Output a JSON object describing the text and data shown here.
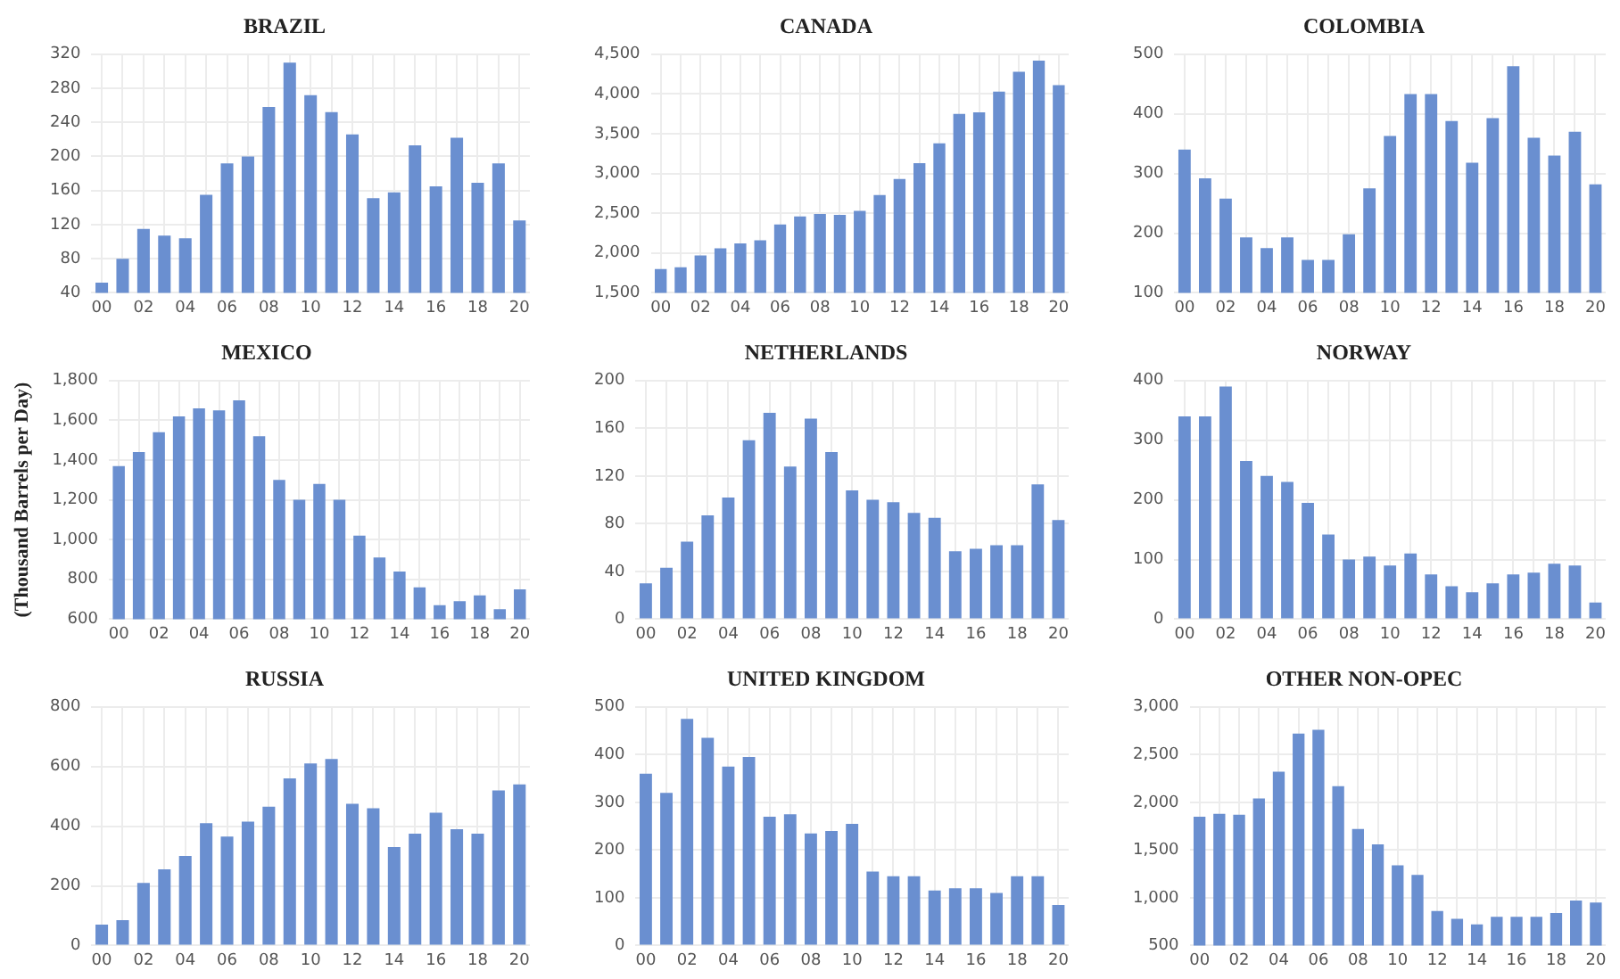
{
  "chart_data": [
    {
      "type": "bar",
      "title": "BRAZIL",
      "categories": [
        "00",
        null,
        "02",
        null,
        "04",
        null,
        "06",
        null,
        "08",
        null,
        "10",
        null,
        "12",
        null,
        "14",
        null,
        "16",
        null,
        "18",
        null,
        "20"
      ],
      "values": [
        52,
        80,
        115,
        107,
        104,
        155,
        192,
        200,
        258,
        310,
        272,
        252,
        226,
        151,
        158,
        213,
        165,
        222,
        169,
        192,
        125
      ],
      "color": "#6a8fd0",
      "ylim": [
        40,
        320
      ],
      "yticks": [
        40,
        80,
        120,
        160,
        200,
        240,
        280,
        320
      ],
      "grid": true
    },
    {
      "type": "bar",
      "title": "CANADA",
      "categories": [
        "00",
        null,
        "02",
        null,
        "04",
        null,
        "06",
        null,
        "08",
        null,
        "10",
        null,
        "12",
        null,
        "14",
        null,
        "16",
        null,
        "18",
        null,
        "20"
      ],
      "values": [
        1800,
        1820,
        1970,
        2060,
        2120,
        2160,
        2360,
        2460,
        2490,
        2480,
        2530,
        2730,
        2930,
        3130,
        3380,
        3750,
        3770,
        4030,
        4280,
        4420,
        4110
      ],
      "color": "#6a8fd0",
      "ylim": [
        1500,
        4500
      ],
      "yticks": [
        {
          "value": 1500,
          "label": "1,500"
        },
        {
          "value": 2000,
          "label": "2,000"
        },
        {
          "value": 2500,
          "label": "2,500"
        },
        {
          "value": 3000,
          "label": "3,000"
        },
        {
          "value": 3500,
          "label": "3,500"
        },
        {
          "value": 4000,
          "label": "4,000"
        },
        {
          "value": 4500,
          "label": "4,500"
        }
      ],
      "grid": true
    },
    {
      "type": "bar",
      "title": "COLOMBIA",
      "categories": [
        "00",
        null,
        "02",
        null,
        "04",
        null,
        "06",
        null,
        "08",
        null,
        "10",
        null,
        "12",
        null,
        "14",
        null,
        "16",
        null,
        "18",
        null,
        "20"
      ],
      "values": [
        340,
        292,
        258,
        193,
        175,
        193,
        155,
        155,
        198,
        275,
        363,
        433,
        433,
        388,
        318,
        393,
        480,
        360,
        330,
        370,
        282
      ],
      "color": "#6a8fd0",
      "ylim": [
        100,
        500
      ],
      "yticks": [
        100,
        200,
        300,
        400,
        500
      ],
      "grid": true
    },
    {
      "type": "bar",
      "title": "MEXICO",
      "ylabel": "(Thousand Barrels per Day)",
      "categories": [
        "00",
        null,
        "02",
        null,
        "04",
        null,
        "06",
        null,
        "08",
        null,
        "10",
        null,
        "12",
        null,
        "14",
        null,
        "16",
        null,
        "18",
        null,
        "20"
      ],
      "values": [
        1370,
        1440,
        1540,
        1620,
        1660,
        1650,
        1700,
        1520,
        1300,
        1200,
        1280,
        1200,
        1020,
        910,
        840,
        760,
        670,
        690,
        720,
        650,
        750
      ],
      "color": "#6a8fd0",
      "ylim": [
        600,
        1800
      ],
      "yticks": [
        600,
        800,
        {
          "value": 1000,
          "label": "1,000"
        },
        {
          "value": 1200,
          "label": "1,200"
        },
        {
          "value": 1400,
          "label": "1,400"
        },
        {
          "value": 1600,
          "label": "1,600"
        },
        {
          "value": 1800,
          "label": "1,800"
        }
      ],
      "grid": true
    },
    {
      "type": "bar",
      "title": "NETHERLANDS",
      "categories": [
        "00",
        null,
        "02",
        null,
        "04",
        null,
        "06",
        null,
        "08",
        null,
        "10",
        null,
        "12",
        null,
        "14",
        null,
        "16",
        null,
        "18",
        null,
        "20"
      ],
      "values": [
        30,
        43,
        65,
        87,
        102,
        150,
        173,
        128,
        168,
        140,
        108,
        100,
        98,
        89,
        85,
        57,
        59,
        62,
        62,
        113,
        83
      ],
      "color": "#6a8fd0",
      "ylim": [
        0,
        200
      ],
      "yticks": [
        0,
        40,
        80,
        120,
        160,
        200
      ],
      "grid": true
    },
    {
      "type": "bar",
      "title": "NORWAY",
      "categories": [
        "00",
        null,
        "02",
        null,
        "04",
        null,
        "06",
        null,
        "08",
        null,
        "10",
        null,
        "12",
        null,
        "14",
        null,
        "16",
        null,
        "18",
        null,
        "20"
      ],
      "values": [
        340,
        340,
        390,
        265,
        240,
        230,
        195,
        142,
        100,
        105,
        90,
        110,
        75,
        55,
        45,
        60,
        75,
        78,
        93,
        90,
        28
      ],
      "color": "#6a8fd0",
      "ylim": [
        0,
        400
      ],
      "yticks": [
        0,
        100,
        200,
        300,
        400
      ],
      "grid": true
    },
    {
      "type": "bar",
      "title": "RUSSIA",
      "categories": [
        "00",
        null,
        "02",
        null,
        "04",
        null,
        "06",
        null,
        "08",
        null,
        "10",
        null,
        "12",
        null,
        "14",
        null,
        "16",
        null,
        "18",
        null,
        "20"
      ],
      "values": [
        70,
        85,
        210,
        255,
        300,
        410,
        365,
        415,
        465,
        560,
        610,
        625,
        475,
        460,
        330,
        375,
        445,
        390,
        375,
        520,
        540
      ],
      "color": "#6a8fd0",
      "ylim": [
        0,
        800
      ],
      "yticks": [
        0,
        200,
        400,
        600,
        800
      ],
      "grid": true
    },
    {
      "type": "bar",
      "title": "UNITED KINGDOM",
      "categories": [
        "00",
        null,
        "02",
        null,
        "04",
        null,
        "06",
        null,
        "08",
        null,
        "10",
        null,
        "12",
        null,
        "14",
        null,
        "16",
        null,
        "18",
        null,
        "20"
      ],
      "values": [
        360,
        320,
        475,
        435,
        375,
        395,
        270,
        275,
        235,
        240,
        255,
        155,
        145,
        145,
        115,
        120,
        120,
        110,
        145,
        145,
        85
      ],
      "color": "#6a8fd0",
      "ylim": [
        0,
        500
      ],
      "yticks": [
        0,
        100,
        200,
        300,
        400,
        500
      ],
      "grid": true
    },
    {
      "type": "bar",
      "title": "OTHER NON-OPEC",
      "categories": [
        "00",
        null,
        "02",
        null,
        "04",
        null,
        "06",
        null,
        "08",
        null,
        "10",
        null,
        "12",
        null,
        "14",
        null,
        "16",
        null,
        "18",
        null,
        "20"
      ],
      "values": [
        1850,
        1880,
        1870,
        2040,
        2320,
        2720,
        2760,
        2170,
        1720,
        1560,
        1340,
        1240,
        860,
        780,
        720,
        800,
        800,
        800,
        840,
        970,
        950
      ],
      "color": "#6a8fd0",
      "ylim": [
        500,
        3000
      ],
      "yticks": [
        500,
        {
          "value": 1000,
          "label": "1,000"
        },
        {
          "value": 1500,
          "label": "1,500"
        },
        {
          "value": 2000,
          "label": "2,000"
        },
        {
          "value": 2500,
          "label": "2,500"
        },
        {
          "value": 3000,
          "label": "3,000"
        }
      ],
      "grid": true
    }
  ]
}
